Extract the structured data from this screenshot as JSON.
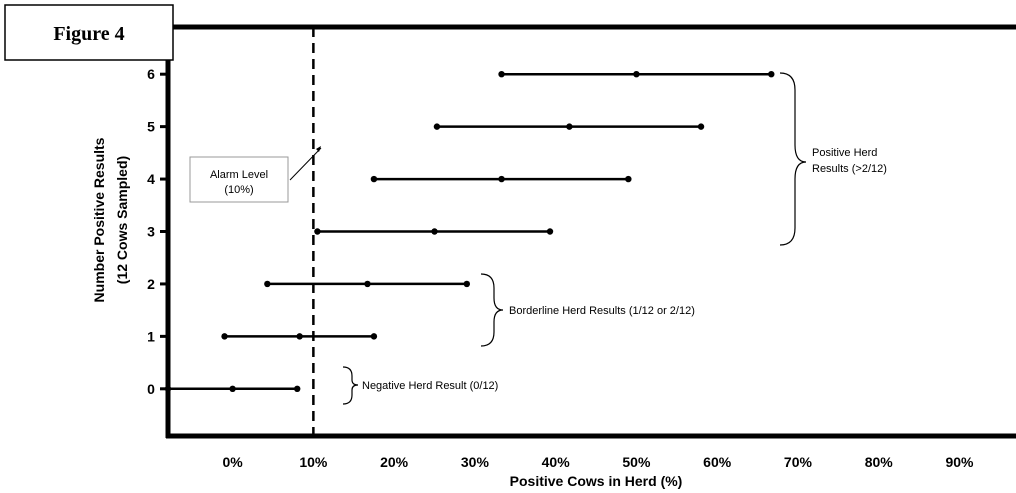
{
  "figure_label": "Figure 4",
  "chart_data": {
    "type": "scatter",
    "xlabel": "Positive Cows in Herd (%)",
    "ylabel_line1": "Number Positive Results",
    "ylabel_line2": "(12 Cows Sampled)",
    "xlim": [
      -8,
      97
    ],
    "ylim": [
      -0.9,
      6.9
    ],
    "x_ticks": [
      {
        "value": 0,
        "label": "0%"
      },
      {
        "value": 10,
        "label": "10%"
      },
      {
        "value": 20,
        "label": "20%"
      },
      {
        "value": 30,
        "label": "30%"
      },
      {
        "value": 40,
        "label": "40%"
      },
      {
        "value": 50,
        "label": "50%"
      },
      {
        "value": 60,
        "label": "60%"
      },
      {
        "value": 70,
        "label": "70%"
      },
      {
        "value": 80,
        "label": "80%"
      },
      {
        "value": 90,
        "label": "90%"
      }
    ],
    "y_ticks": [
      {
        "value": 0,
        "label": "0"
      },
      {
        "value": 1,
        "label": "1"
      },
      {
        "value": 2,
        "label": "2"
      },
      {
        "value": 3,
        "label": "3"
      },
      {
        "value": 4,
        "label": "4"
      },
      {
        "value": 5,
        "label": "5"
      },
      {
        "value": 6,
        "label": "6"
      }
    ],
    "intervals": [
      {
        "y": 0,
        "low": -8,
        "point": 0,
        "high": 8
      },
      {
        "y": 1,
        "low": -1,
        "point": 8.3,
        "high": 17.5
      },
      {
        "y": 2,
        "low": 4.3,
        "point": 16.7,
        "high": 29
      },
      {
        "y": 3,
        "low": 10.5,
        "point": 25,
        "high": 39.3
      },
      {
        "y": 4,
        "low": 17.5,
        "point": 33.3,
        "high": 49
      },
      {
        "y": 5,
        "low": 25.3,
        "point": 41.7,
        "high": 58
      },
      {
        "y": 6,
        "low": 33.3,
        "point": 50,
        "high": 66.7
      }
    ],
    "alarm_level": {
      "x": 10,
      "label_line1": "Alarm Level",
      "label_line2": "(10%)"
    },
    "brace_labels": {
      "negative": "Negative Herd Result (0/12)",
      "borderline": "Borderline Herd Results (1/12 or 2/12)",
      "positive_line1": "Positive Herd",
      "positive_line2": "Results (>2/12)"
    }
  }
}
